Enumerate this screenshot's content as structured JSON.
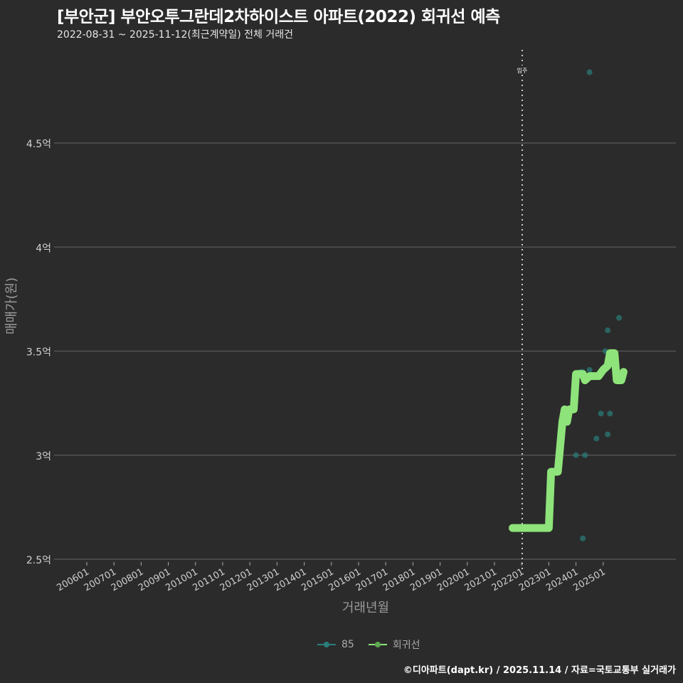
{
  "header": {
    "title": "[부안군] 부안오투그란데2차하이스트 아파트(2022) 회귀선 예측",
    "subtitle": "2022-08-31 ~ 2025-11-12(최근계약일) 전체 거래건"
  },
  "axes": {
    "ylabel": "매매가(원)",
    "xlabel": "거래년월",
    "yticks": [
      {
        "label": "2.5억",
        "value": 2.5
      },
      {
        "label": "3억",
        "value": 3.0
      },
      {
        "label": "3.5억",
        "value": 3.5
      },
      {
        "label": "4억",
        "value": 4.0
      },
      {
        "label": "4.5억",
        "value": 4.5
      }
    ],
    "xticks": [
      "200601",
      "200701",
      "200801",
      "200901",
      "201001",
      "201101",
      "201201",
      "201301",
      "201401",
      "201501",
      "201601",
      "201701",
      "201801",
      "201901",
      "202001",
      "202101",
      "202201",
      "202301",
      "202401",
      "202501"
    ]
  },
  "annotation": {
    "label": "입주",
    "x": "202201"
  },
  "legend": {
    "items": [
      {
        "label": "85",
        "color": "#2a7f7a"
      },
      {
        "label": "회귀선",
        "color": "#8ee37a"
      }
    ]
  },
  "footer": {
    "text": "©디아파트(dapt.kr) / 2025.11.14 / 자료=국토교통부 실거래가"
  },
  "colors": {
    "background": "#2b2b2b",
    "grid": "#5a5a5a",
    "scatter": "#2a7f7a",
    "regression": "#8ee37a"
  },
  "chart_data": {
    "type": "scatter",
    "title": "[부안군] 부안오투그란데2차하이스트 아파트(2022) 회귀선 예측",
    "subtitle": "2022-08-31 ~ 2025-11-12(최근계약일) 전체 거래건",
    "xlabel": "거래년월",
    "ylabel": "매매가(원)",
    "ylim": [
      2.5,
      4.9
    ],
    "y_unit": "억",
    "grid": true,
    "legend_position": "bottom",
    "x_categories": [
      "200601",
      "200701",
      "200801",
      "200901",
      "201001",
      "201101",
      "201201",
      "201301",
      "201401",
      "201501",
      "201601",
      "201701",
      "201801",
      "201901",
      "202001",
      "202101",
      "202201",
      "202301",
      "202401",
      "202501"
    ],
    "series": [
      {
        "name": "85",
        "type": "scatter",
        "points": [
          {
            "x": "2023-12",
            "y": 3.31
          },
          {
            "x": "2024-01",
            "y": 3.0
          },
          {
            "x": "2024-03",
            "y": 3.4
          },
          {
            "x": "2024-04",
            "y": 3.4
          },
          {
            "x": "2024-04",
            "y": 2.6
          },
          {
            "x": "2024-05",
            "y": 3.0
          },
          {
            "x": "2024-07",
            "y": 3.41
          },
          {
            "x": "2024-07",
            "y": 4.84
          },
          {
            "x": "2024-10",
            "y": 3.08
          },
          {
            "x": "2024-12",
            "y": 3.2
          },
          {
            "x": "2025-02",
            "y": 3.5
          },
          {
            "x": "2025-03",
            "y": 3.6
          },
          {
            "x": "2025-03",
            "y": 3.1
          },
          {
            "x": "2025-04",
            "y": 3.2
          },
          {
            "x": "2025-08",
            "y": 3.66
          }
        ]
      },
      {
        "name": "회귀선",
        "type": "line",
        "points": [
          {
            "x": "2021-09",
            "y": 2.65
          },
          {
            "x": "2023-01",
            "y": 2.65
          },
          {
            "x": "2023-02",
            "y": 2.92
          },
          {
            "x": "2023-05",
            "y": 2.92
          },
          {
            "x": "2023-07",
            "y": 3.16
          },
          {
            "x": "2023-08",
            "y": 3.22
          },
          {
            "x": "2023-09",
            "y": 3.16
          },
          {
            "x": "2023-10",
            "y": 3.22
          },
          {
            "x": "2023-12",
            "y": 3.22
          },
          {
            "x": "2024-01",
            "y": 3.39
          },
          {
            "x": "2024-04",
            "y": 3.39
          },
          {
            "x": "2024-05",
            "y": 3.36
          },
          {
            "x": "2024-07",
            "y": 3.38
          },
          {
            "x": "2024-11",
            "y": 3.38
          },
          {
            "x": "2025-01",
            "y": 3.41
          },
          {
            "x": "2025-03",
            "y": 3.43
          },
          {
            "x": "2025-04",
            "y": 3.49
          },
          {
            "x": "2025-06",
            "y": 3.49
          },
          {
            "x": "2025-07",
            "y": 3.36
          },
          {
            "x": "2025-09",
            "y": 3.36
          },
          {
            "x": "2025-10",
            "y": 3.4
          }
        ]
      }
    ],
    "annotations": [
      {
        "label": "입주",
        "x": "2022-01",
        "style": "dotted vertical line"
      }
    ]
  }
}
